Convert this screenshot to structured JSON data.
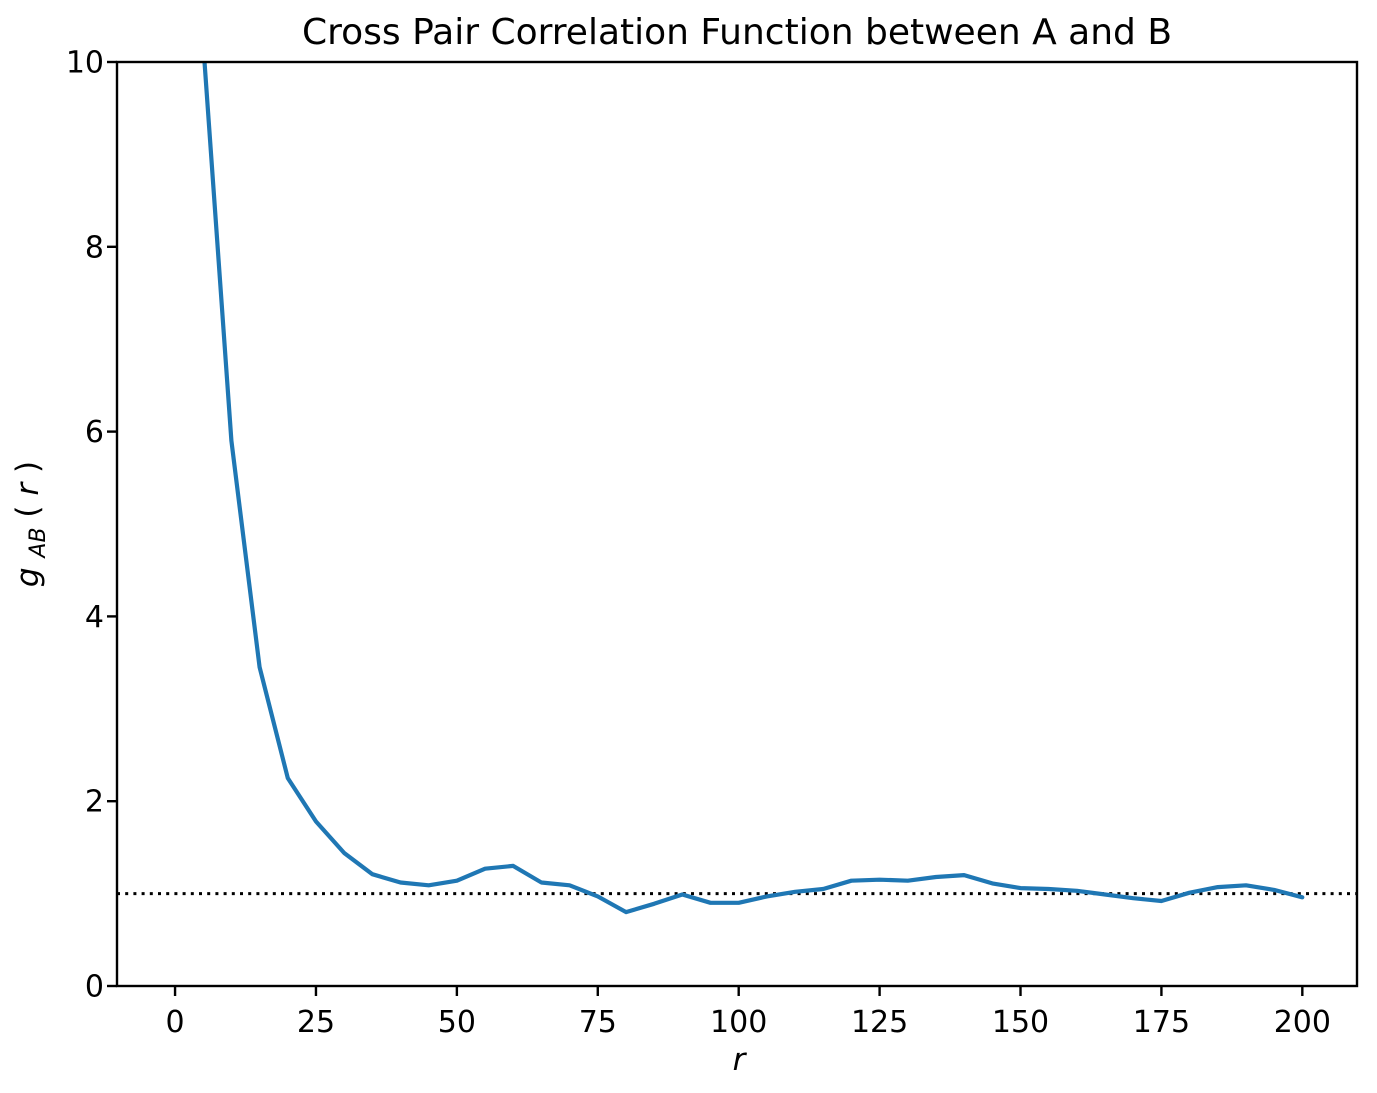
{
  "figure": {
    "title": "Cross Pair Correlation Function between A and B",
    "xlabel": "r",
    "ylabel": "g_AB(r)",
    "ylabel_parts": {
      "base": "g",
      "sub": "AB",
      "open": "(",
      "var": "r",
      "close": ")"
    }
  },
  "chart_data": {
    "type": "line",
    "title": "Cross Pair Correlation Function between A and B",
    "xlabel": "r",
    "ylabel": "g_AB(r)",
    "grid": false,
    "legend": "none",
    "background": "#ffffff",
    "xlim": [
      -10.3,
      209.7
    ],
    "ylim": [
      0,
      10
    ],
    "x_ticks": [
      0,
      25,
      50,
      75,
      100,
      125,
      150,
      175,
      200
    ],
    "y_ticks": [
      0,
      2,
      4,
      6,
      8,
      10
    ],
    "x": [
      0,
      5,
      10,
      15,
      20,
      25,
      30,
      35,
      40,
      45,
      50,
      55,
      60,
      65,
      70,
      75,
      80,
      85,
      90,
      95,
      100,
      105,
      110,
      115,
      120,
      125,
      130,
      135,
      140,
      145,
      150,
      155,
      160,
      165,
      170,
      175,
      180,
      185,
      190,
      195,
      200
    ],
    "series": [
      {
        "name": "g_AB(r)",
        "color": "#1f77b4",
        "line_width": 4.2,
        "values": [
          28.0,
          10.2,
          5.9,
          3.45,
          2.25,
          1.78,
          1.44,
          1.21,
          1.12,
          1.09,
          1.14,
          1.27,
          1.3,
          1.12,
          1.09,
          0.97,
          0.8,
          0.89,
          0.99,
          0.9,
          0.9,
          0.97,
          1.02,
          1.05,
          1.14,
          1.15,
          1.14,
          1.18,
          1.2,
          1.11,
          1.06,
          1.05,
          1.03,
          0.99,
          0.95,
          0.92,
          1.01,
          1.07,
          1.09,
          1.04,
          0.96
        ]
      }
    ],
    "reference_line": {
      "y": 1.0,
      "color": "#000000",
      "style": "dotted"
    }
  }
}
